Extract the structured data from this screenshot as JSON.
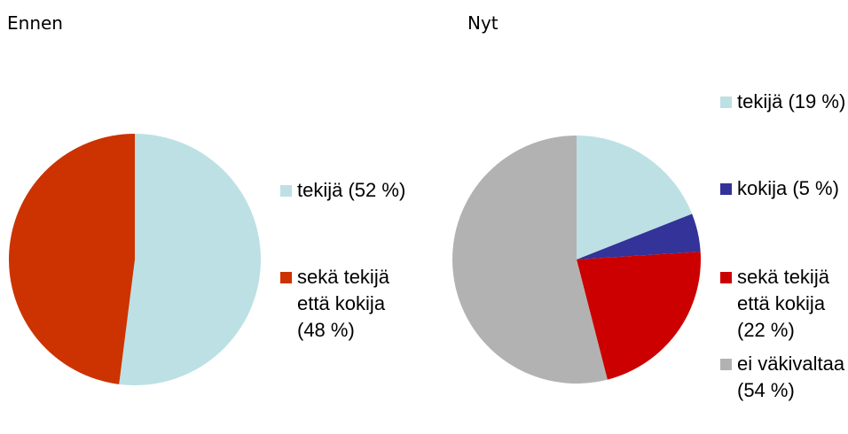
{
  "chart_data": [
    {
      "type": "pie",
      "title": "Ennen",
      "categories": [
        "tekijä (52 %)",
        "sekä tekijä että kokija (48 %)"
      ],
      "values": [
        52,
        48
      ],
      "colors": [
        "#bde0e4",
        "#cc3300"
      ]
    },
    {
      "type": "pie",
      "title": "Nyt",
      "categories": [
        "tekijä (19 %)",
        "kokija (5 %)",
        "sekä tekijä että kokija (22 %)",
        "ei väkivaltaa (54 %)"
      ],
      "values": [
        19,
        5,
        22,
        54
      ],
      "colors": [
        "#bde0e4",
        "#333399",
        "#cc0000",
        "#b2b2b2"
      ]
    }
  ]
}
